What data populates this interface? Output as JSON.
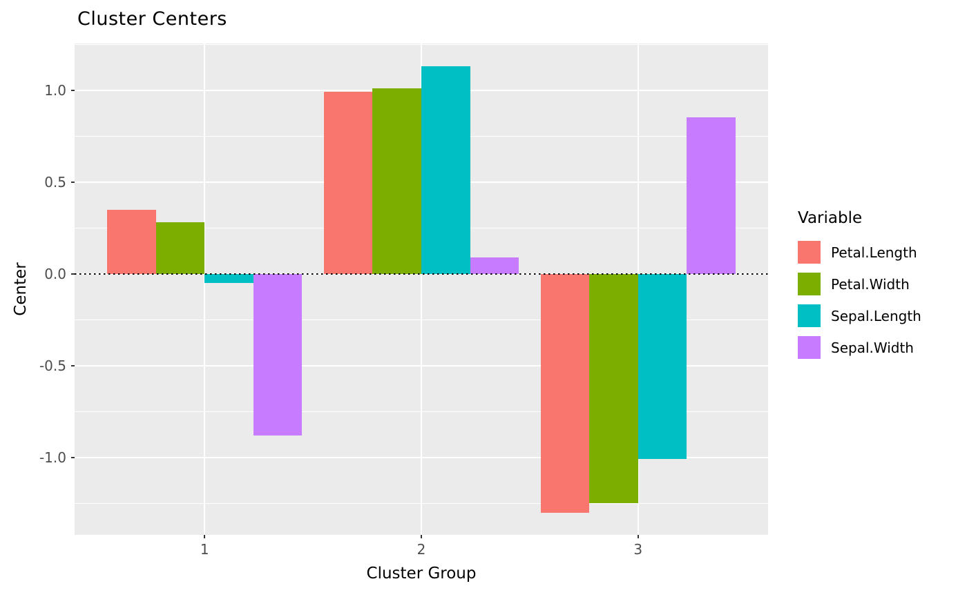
{
  "chart_data": {
    "type": "bar",
    "title": "Cluster Centers",
    "xlabel": "Cluster Group",
    "ylabel": "Center",
    "categories": [
      "1",
      "2",
      "3"
    ],
    "series": [
      {
        "name": "Petal.Length",
        "color": "#F8766D",
        "values": [
          0.35,
          0.99,
          -1.3
        ]
      },
      {
        "name": "Petal.Width",
        "color": "#7CAE00",
        "values": [
          0.28,
          1.01,
          -1.25
        ]
      },
      {
        "name": "Sepal.Length",
        "color": "#00BFC4",
        "values": [
          -0.05,
          1.13,
          -1.01
        ]
      },
      {
        "name": "Sepal.Width",
        "color": "#C77CFF",
        "values": [
          -0.88,
          0.09,
          0.85
        ]
      }
    ],
    "ylim": [
      -1.422,
      1.254
    ],
    "y_tick_values": [
      1.0,
      0.5,
      0.0,
      -0.5,
      -1.0
    ],
    "y_tick_labels": [
      "1.0",
      "0.5",
      "0.0",
      "-0.5",
      "-1.0"
    ],
    "y_minor_tick_values": [
      1.25,
      0.75,
      0.25,
      -0.25,
      -0.75,
      -1.25
    ],
    "reference_line": {
      "y": 0,
      "style": "dotted",
      "color": "#000000"
    },
    "legend_title": "Variable",
    "legend_position": "right",
    "grid": true,
    "panel_background": "#EBEBEB",
    "grid_color": "#FFFFFF",
    "bar_group_width": 0.9
  }
}
